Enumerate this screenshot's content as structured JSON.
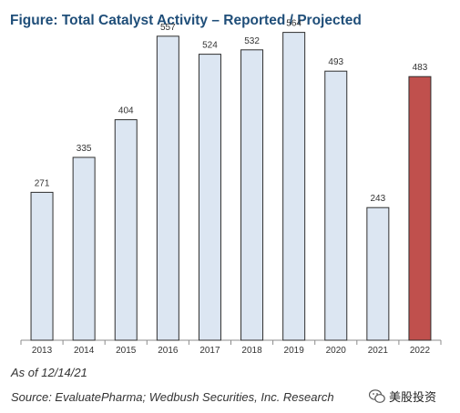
{
  "title": "Figure:  Total Catalyst Activity – Reported / Projected",
  "note": "As of 12/14/21",
  "source": "Source: EvaluatePharma; Wedbush Securities, Inc. Research",
  "watermark": "美股投资",
  "colors": {
    "bar_fill": "#dce6f2",
    "bar_stroke": "#2f2f2f",
    "highlight_fill": "#c0504d",
    "title": "#1f4e79"
  },
  "chart_data": {
    "type": "bar",
    "categories": [
      "2013",
      "2014",
      "2015",
      "2016",
      "2017",
      "2018",
      "2019",
      "2020",
      "2021",
      "2022"
    ],
    "values": [
      271,
      335,
      404,
      557,
      524,
      532,
      564,
      493,
      243,
      483
    ],
    "highlighted_category": "2022",
    "title": "",
    "xlabel": "",
    "ylabel": "",
    "ylim": [
      0,
      600
    ],
    "grid": false,
    "legend": "none"
  }
}
